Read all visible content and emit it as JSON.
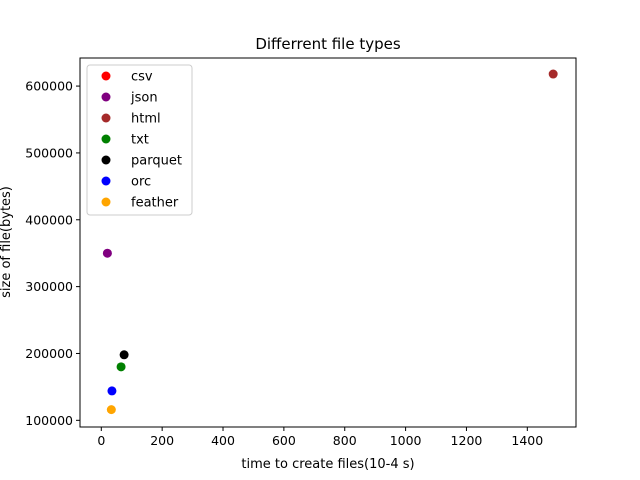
{
  "chart_data": {
    "type": "scatter",
    "title": "Differrent file types",
    "xlabel": "time to create files(10-4 s)",
    "ylabel": "size of file(bytes)",
    "xlim": [
      -70,
      1560
    ],
    "ylim": [
      90000,
      642000
    ],
    "xticks": [
      0,
      200,
      400,
      600,
      800,
      1000,
      1200,
      1400
    ],
    "yticks": [
      100000,
      200000,
      300000,
      400000,
      500000,
      600000
    ],
    "grid": false,
    "legend_position": "top-left",
    "series": [
      {
        "name": "csv",
        "color": "#ff0000",
        "points": []
      },
      {
        "name": "json",
        "color": "#800080",
        "points": [
          [
            20,
            350000
          ]
        ]
      },
      {
        "name": "html",
        "color": "#a52a2a",
        "points": [
          [
            1485,
            618000
          ]
        ]
      },
      {
        "name": "txt",
        "color": "#008000",
        "points": [
          [
            65,
            180000
          ]
        ]
      },
      {
        "name": "parquet",
        "color": "#000000",
        "points": [
          [
            75,
            198000
          ]
        ]
      },
      {
        "name": "orc",
        "color": "#0000ff",
        "points": [
          [
            35,
            144000
          ]
        ]
      },
      {
        "name": "feather",
        "color": "#ffa500",
        "points": [
          [
            33,
            116000
          ]
        ]
      }
    ]
  }
}
